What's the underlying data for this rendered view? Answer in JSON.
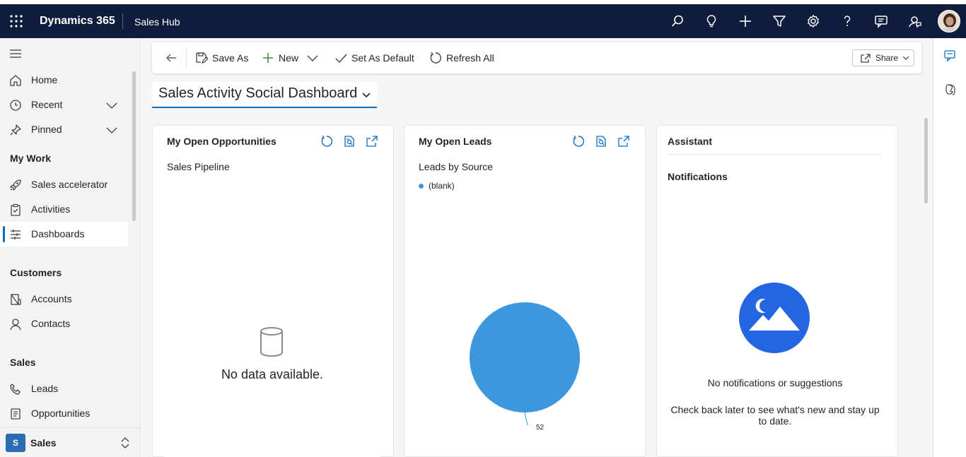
{
  "topbar": {
    "brand": "Dynamics 365",
    "app": "Sales Hub",
    "icons": [
      "search-icon",
      "lightbulb-icon",
      "plus-icon",
      "filter-icon",
      "settings-icon",
      "help-icon",
      "chat-icon",
      "feedback-icon"
    ]
  },
  "sidebar": {
    "items_top": [
      {
        "label": "Home",
        "icon": "home-icon"
      },
      {
        "label": "Recent",
        "icon": "clock-icon"
      },
      {
        "label": "Pinned",
        "icon": "pin-icon"
      }
    ],
    "groups": [
      {
        "title": "My Work",
        "items": [
          {
            "label": "Sales accelerator",
            "icon": "rocket-icon"
          },
          {
            "label": "Activities",
            "icon": "clipboard-icon"
          },
          {
            "label": "Dashboards",
            "icon": "dashboard-icon"
          }
        ]
      },
      {
        "title": "Customers",
        "items": [
          {
            "label": "Accounts",
            "icon": "building-icon"
          },
          {
            "label": "Contacts",
            "icon": "person-icon"
          }
        ]
      },
      {
        "title": "Sales",
        "items": [
          {
            "label": "Leads",
            "icon": "phone-icon"
          },
          {
            "label": "Opportunities",
            "icon": "document-icon"
          }
        ]
      }
    ],
    "area": {
      "badge": "S",
      "label": "Sales"
    }
  },
  "commandbar": {
    "save_as": "Save As",
    "new": "New",
    "set_default": "Set As Default",
    "refresh_all": "Refresh All",
    "share": "Share"
  },
  "dashboard": {
    "title": "Sales Activity Social Dashboard"
  },
  "cards": {
    "opportunities": {
      "title": "My Open Opportunities",
      "subtitle": "Sales Pipeline",
      "empty": "No data available."
    },
    "leads": {
      "title": "My Open Leads",
      "subtitle": "Leads by Source"
    },
    "assistant": {
      "title": "Assistant",
      "subtitle": "Notifications",
      "empty_title": "No notifications or suggestions",
      "empty_body": "Check back later to see what's new and stay up to date."
    }
  },
  "chart_data": {
    "type": "pie",
    "title": "Leads by Source",
    "categories": [
      "(blank)"
    ],
    "values": [
      52
    ],
    "data_labels": [
      "52"
    ],
    "legend": "top-left",
    "colors": [
      "#3c97dd"
    ]
  },
  "colors": {
    "topbar": "#0f1d3d",
    "accent": "#0f6cbd",
    "pie": "#3c97dd",
    "assistant_badge": "#2266e3"
  }
}
